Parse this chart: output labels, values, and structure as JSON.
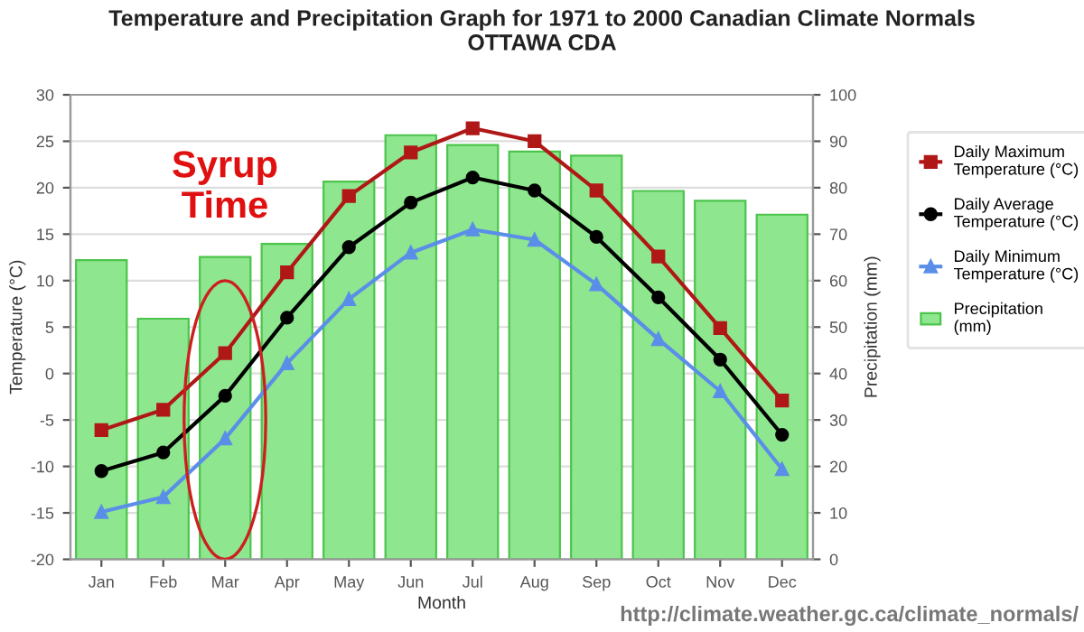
{
  "chart_data": {
    "type": "line",
    "title": "Temperature and Precipitation Graph for 1971 to 2000 Canadian Climate Normals\nOTTAWA CDA",
    "xlabel": "Month",
    "ylabel": "Temperature (°C)",
    "y2label": "Precipitation (mm)",
    "categories": [
      "Jan",
      "Feb",
      "Mar",
      "Apr",
      "May",
      "Jun",
      "Jul",
      "Aug",
      "Sep",
      "Oct",
      "Nov",
      "Dec"
    ],
    "series": [
      {
        "name": "Daily Maximum Temperature (°C)",
        "color": "#b01818",
        "marker": "square",
        "values": [
          -6.1,
          -3.9,
          2.2,
          10.9,
          19.1,
          23.8,
          26.4,
          25.0,
          19.7,
          12.6,
          4.9,
          -2.9
        ]
      },
      {
        "name": "Daily Average Temperature (°C)",
        "color": "#000000",
        "marker": "circle",
        "values": [
          -10.5,
          -8.5,
          -2.4,
          6.0,
          13.6,
          18.4,
          21.1,
          19.7,
          14.7,
          8.2,
          1.5,
          -6.6
        ]
      },
      {
        "name": "Daily Minimum Temperature (°C)",
        "color": "#5a8ee8",
        "marker": "triangle",
        "values": [
          -14.9,
          -13.3,
          -7.0,
          1.1,
          8.0,
          13.0,
          15.5,
          14.4,
          9.6,
          3.7,
          -1.9,
          -10.3
        ]
      },
      {
        "name": "Precipitation (mm)",
        "type": "bar",
        "axis": "y2",
        "color": "#8ee68e",
        "values": [
          64.4,
          51.8,
          65.1,
          67.9,
          81.3,
          91.3,
          89.2,
          87.8,
          86.9,
          79.3,
          77.2,
          74.2
        ]
      }
    ],
    "ylim": [
      -20,
      30
    ],
    "yticks": [
      -20,
      -15,
      -10,
      -5,
      0,
      5,
      10,
      15,
      20,
      25,
      30
    ],
    "y2lim": [
      0,
      100
    ],
    "y2ticks": [
      0,
      10,
      20,
      30,
      40,
      50,
      60,
      70,
      80,
      90,
      100
    ],
    "grid": true,
    "legend": "right",
    "annotations": [
      "Syrup\nTime",
      "http://climate.weather.gc.ca/climate_normals/"
    ]
  }
}
